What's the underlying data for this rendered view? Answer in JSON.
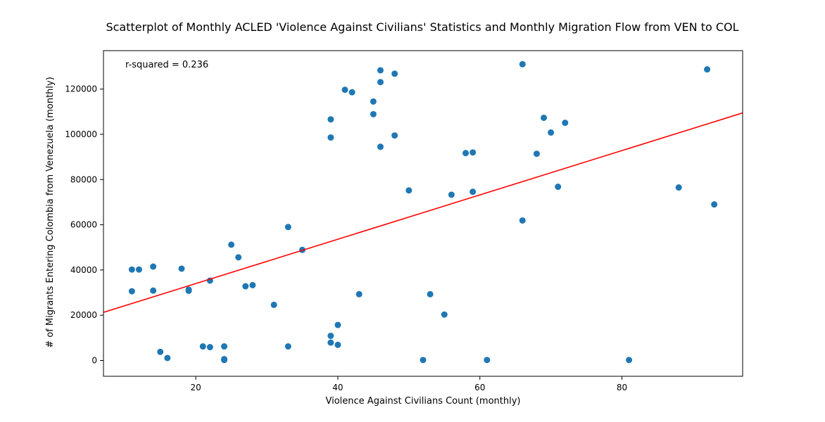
{
  "chart_data": {
    "type": "scatter",
    "title": "Scatterplot of Monthly ACLED 'Violence Against Civilians' Statistics and Monthly Migration Flow from VEN to COL",
    "xlabel": "Violence Against Civilians Count (monthly)",
    "ylabel": "# of Migrants Entering Colombia from Venezuela (monthly)",
    "annotation": "r-squared = 0.236",
    "xlim": [
      7,
      97
    ],
    "ylim": [
      -7000,
      137000
    ],
    "x_ticks": [
      20,
      40,
      60,
      80
    ],
    "y_ticks": [
      0,
      20000,
      40000,
      60000,
      80000,
      100000,
      120000
    ],
    "x_tick_labels": [
      "20",
      "40",
      "60",
      "80"
    ],
    "y_tick_labels": [
      "0",
      "20000",
      "40000",
      "60000",
      "80000",
      "100000",
      "120000"
    ],
    "point_color": "#1f77b4",
    "fit_color": "#ff0000",
    "fit_line": {
      "slope": 980,
      "intercept": 14400
    },
    "points": [
      [
        11,
        40200
      ],
      [
        11,
        30600
      ],
      [
        12,
        40200
      ],
      [
        14,
        41500
      ],
      [
        14,
        30900
      ],
      [
        15,
        3800
      ],
      [
        16,
        1100
      ],
      [
        18,
        40600
      ],
      [
        19,
        31300
      ],
      [
        19,
        30800
      ],
      [
        21,
        6200
      ],
      [
        22,
        35300
      ],
      [
        22,
        5900
      ],
      [
        24,
        6200
      ],
      [
        24,
        600
      ],
      [
        24,
        200
      ],
      [
        25,
        51200
      ],
      [
        26,
        45600
      ],
      [
        27,
        32800
      ],
      [
        28,
        33300
      ],
      [
        31,
        24600
      ],
      [
        33,
        59000
      ],
      [
        33,
        6200
      ],
      [
        35,
        48900
      ],
      [
        39,
        106600
      ],
      [
        39,
        98600
      ],
      [
        39,
        10900
      ],
      [
        39,
        7900
      ],
      [
        40,
        15700
      ],
      [
        40,
        6900
      ],
      [
        41,
        119700
      ],
      [
        42,
        118600
      ],
      [
        43,
        29300
      ],
      [
        45,
        114500
      ],
      [
        45,
        108900
      ],
      [
        46,
        128300
      ],
      [
        46,
        123100
      ],
      [
        46,
        94500
      ],
      [
        48,
        126800
      ],
      [
        48,
        99500
      ],
      [
        50,
        75200
      ],
      [
        52,
        200
      ],
      [
        53,
        29300
      ],
      [
        55,
        20300
      ],
      [
        56,
        73300
      ],
      [
        58,
        91700
      ],
      [
        59,
        92000
      ],
      [
        59,
        74600
      ],
      [
        61,
        200
      ],
      [
        66,
        131000
      ],
      [
        66,
        61900
      ],
      [
        68,
        91400
      ],
      [
        69,
        107300
      ],
      [
        70,
        100800
      ],
      [
        71,
        76800
      ],
      [
        72,
        105100
      ],
      [
        81,
        200
      ],
      [
        88,
        76500
      ],
      [
        92,
        128700
      ],
      [
        93,
        69000
      ]
    ]
  }
}
